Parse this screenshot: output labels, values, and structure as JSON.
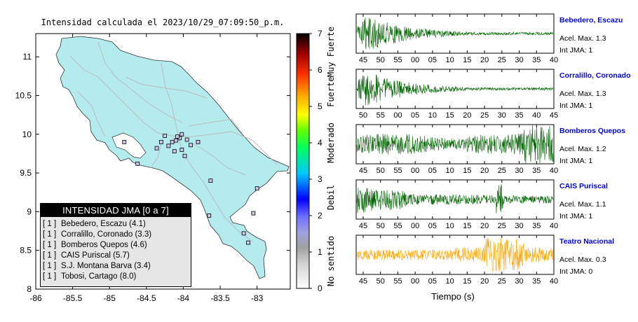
{
  "chart_data": [
    {
      "type": "map",
      "title": "Intensidad calculada el 2023/10/29_07:09:50_p.m.",
      "xlim": [
        -86,
        -82.55
      ],
      "ylim": [
        8,
        11.3
      ],
      "x_ticks": [
        -86,
        -85.5,
        -85,
        -84.5,
        -84,
        -83.5,
        -83
      ],
      "x_tick_labels": [
        "-86",
        "-85.5",
        "-85",
        "-84.5",
        "-84",
        "-83.5",
        "-83"
      ],
      "y_ticks": [
        8,
        8.5,
        9,
        9.5,
        10,
        10.5,
        11
      ],
      "y_tick_labels": [
        "8",
        "8.5",
        "9",
        "9.5",
        "10",
        "10.5",
        "11"
      ],
      "stations": [
        {
          "lon": -84.05,
          "lat": 9.95
        },
        {
          "lon": -84.1,
          "lat": 9.92
        },
        {
          "lon": -84.2,
          "lat": 9.85
        },
        {
          "lon": -84.25,
          "lat": 9.98
        },
        {
          "lon": -84.02,
          "lat": 10.0
        },
        {
          "lon": -83.95,
          "lat": 9.93
        },
        {
          "lon": -84.15,
          "lat": 9.9
        },
        {
          "lon": -84.08,
          "lat": 9.97
        },
        {
          "lon": -83.9,
          "lat": 9.86
        },
        {
          "lon": -84.3,
          "lat": 9.9
        },
        {
          "lon": -83.8,
          "lat": 9.9
        },
        {
          "lon": -84.02,
          "lat": 9.8
        },
        {
          "lon": -83.98,
          "lat": 9.72
        },
        {
          "lon": -84.12,
          "lat": 9.78
        },
        {
          "lon": -84.36,
          "lat": 9.82
        },
        {
          "lon": -84.62,
          "lat": 9.62
        },
        {
          "lon": -84.8,
          "lat": 9.9
        },
        {
          "lon": -83.63,
          "lat": 9.4
        },
        {
          "lon": -83.18,
          "lat": 8.72
        },
        {
          "lon": -83.0,
          "lat": 9.3
        },
        {
          "lon": -83.65,
          "lat": 8.95
        },
        {
          "lon": -83.12,
          "lat": 8.6
        },
        {
          "lon": -83.05,
          "lat": 8.98
        }
      ],
      "legend": {
        "title": "INTENSIDAD JMA [0 a 7]",
        "placement": "bottom-left",
        "entries": [
          {
            "code": "[ 1 ]",
            "label": "Bebedero, Escazu (4.1)"
          },
          {
            "code": "[ 1 ]",
            "label": "Corralillo, Coronado (3.3)"
          },
          {
            "code": "[ 1 ]",
            "label": "Bomberos Quepos (4.6)"
          },
          {
            "code": "[ 1 ]",
            "label": "CAIS Puriscal (5.7)"
          },
          {
            "code": "[ 1 ]",
            "label": "S.J. Montana Barva (3.4)"
          },
          {
            "code": "[ 1 ]",
            "label": "Tobosi, Cartago (8.0)"
          }
        ]
      },
      "colorbar": {
        "range": [
          0,
          7
        ],
        "ticks": [
          "0",
          "1",
          "2",
          "3",
          "4",
          "5",
          "6",
          "7"
        ],
        "category_labels": [
          {
            "label": "No sentido",
            "from": 0,
            "to": 1.5
          },
          {
            "label": "Debil",
            "from": 2,
            "to": 3
          },
          {
            "label": "Moderado",
            "from": 3.5,
            "to": 4.5
          },
          {
            "label": "Fuerte",
            "from": 5,
            "to": 5.8
          },
          {
            "label": "Muy Fuerte",
            "from": 6,
            "to": 7
          }
        ],
        "colors": [
          "#ffffff",
          "#a9a9a9",
          "#9999ff",
          "#0000ff",
          "#00c8ff",
          "#00ff00",
          "#ffff00",
          "#ffa500",
          "#ff0000",
          "#800000",
          "#000000"
        ]
      }
    },
    {
      "type": "line",
      "xlabel": "Tiempo (s)",
      "series": [
        {
          "name": "Bebedero, Escazu",
          "accel_max": "Acel. Max. 1.3",
          "int_jma": "Int JMA: 1",
          "color": "#006400",
          "ticks": [
            "45",
            "50",
            "55",
            "00",
            "05",
            "10",
            "15",
            "20",
            "25",
            "30",
            "35",
            "40"
          ],
          "amplitude_envelope": "early-burst-decay"
        },
        {
          "name": "Corralillo, Coronado",
          "accel_max": "Acel. Max. 1.3",
          "int_jma": "Int JMA: 1",
          "color": "#006400",
          "ticks": [
            "50",
            "55",
            "00",
            "05",
            "10",
            "15",
            "20",
            "25",
            "30",
            "35",
            "40",
            "45"
          ],
          "amplitude_envelope": "early-burst-decay"
        },
        {
          "name": "Bomberos Quepos",
          "accel_max": "Acel. Max. 1.2",
          "int_jma": "Int JMA: 1",
          "color": "#006400",
          "ticks": [
            "45",
            "50",
            "55",
            "00",
            "05",
            "10",
            "15",
            "20",
            "25",
            "30",
            "35",
            "40"
          ],
          "amplitude_envelope": "sustained-late-peak"
        },
        {
          "name": "CAIS Puriscal",
          "accel_max": "Acel. Max. 1.1",
          "int_jma": "Int JMA: 1",
          "color": "#006400",
          "ticks": [
            "45",
            "50",
            "55",
            "00",
            "05",
            "10",
            "15",
            "20",
            "25",
            "30",
            "35",
            "40"
          ],
          "amplitude_envelope": "early-burst-mid-spike"
        },
        {
          "name": "Teatro Nacional",
          "accel_max": "Acel. Max. 0.3",
          "int_jma": "Int JMA: 0",
          "color": "#ffa500",
          "ticks": [
            "45",
            "50",
            "55",
            "00",
            "05",
            "10",
            "15",
            "20",
            "25",
            "30",
            "35",
            "40"
          ],
          "amplitude_envelope": "late-burst"
        }
      ]
    }
  ]
}
